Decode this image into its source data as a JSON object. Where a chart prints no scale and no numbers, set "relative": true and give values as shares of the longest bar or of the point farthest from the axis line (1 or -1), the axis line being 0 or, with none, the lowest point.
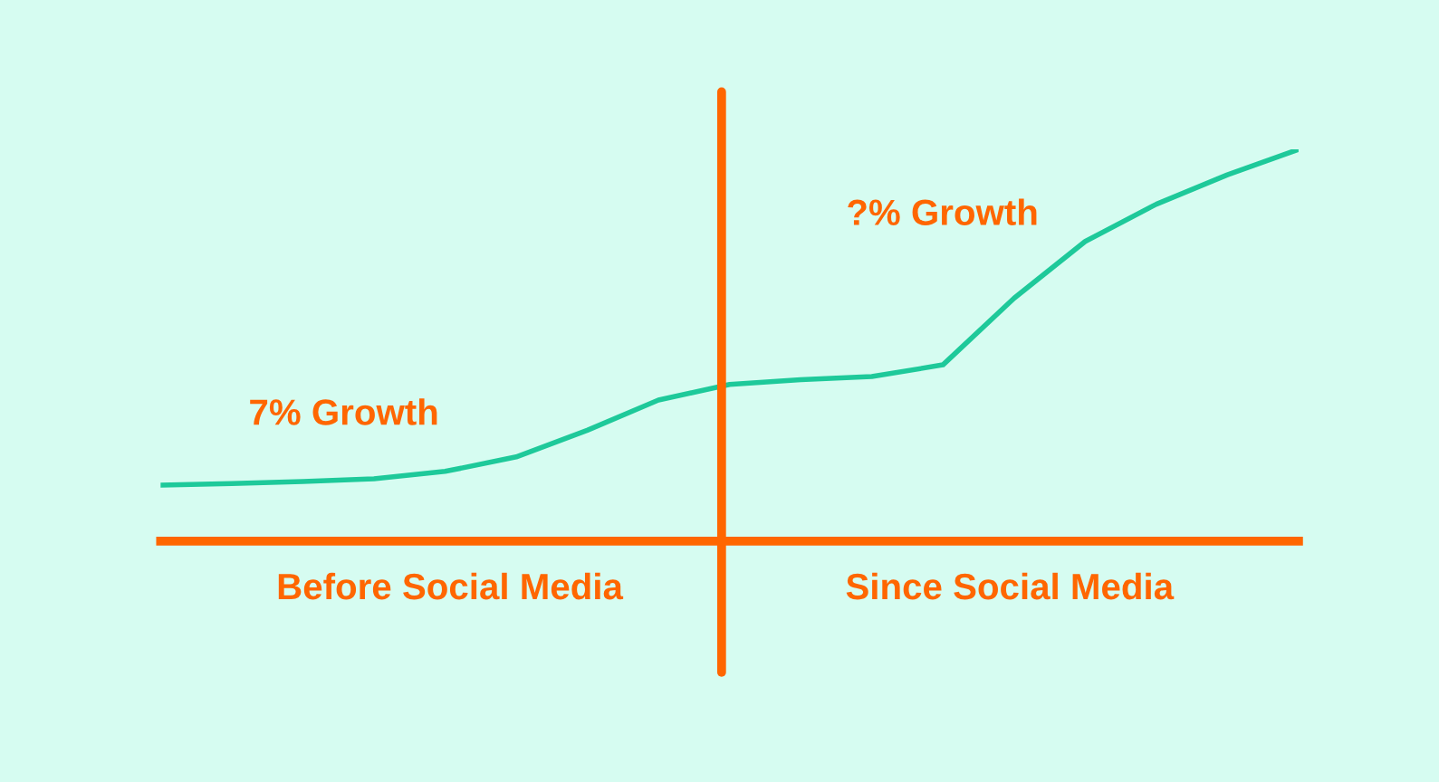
{
  "chart_data": {
    "type": "line",
    "relative": true,
    "categories": [
      null,
      null,
      null,
      null,
      null,
      null,
      null,
      null,
      null,
      null,
      null,
      null,
      null,
      null,
      null,
      null,
      null
    ],
    "series": [
      {
        "color": "#1ec99a",
        "values": [
          0.143,
          0.147,
          0.152,
          0.159,
          0.178,
          0.215,
          0.283,
          0.36,
          0.4,
          0.412,
          0.42,
          0.45,
          0.62,
          0.765,
          0.86,
          0.935,
          1.0
        ]
      }
    ],
    "annotations": [
      "7% Growth",
      "?% Growth",
      "Before Social Media",
      "Since Social Media"
    ],
    "marker": "none",
    "line_style": "solid"
  }
}
